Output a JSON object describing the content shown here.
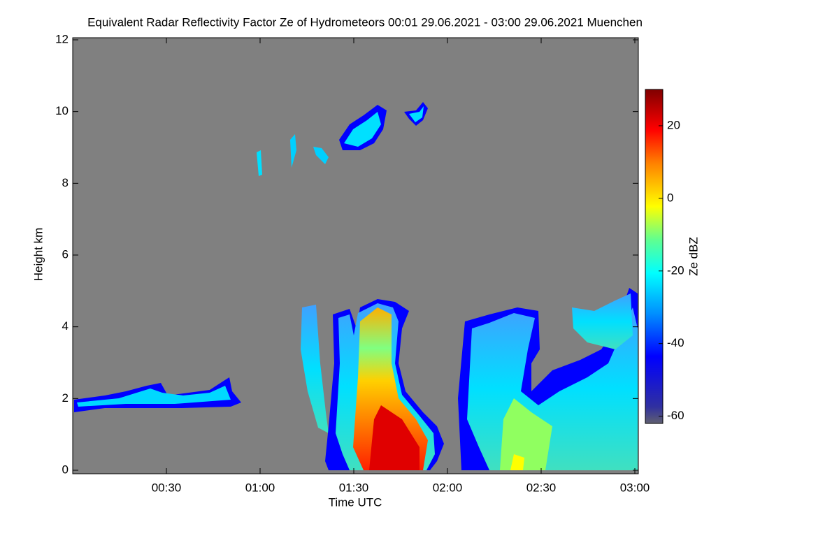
{
  "chart_data": {
    "type": "heatmap",
    "title": "Equivalent Radar Reflectivity Factor Ze of Hydrometeors   00:01 29.06.2021 - 03:00 29.06.2021 Muenchen",
    "x_label": "Time UTC",
    "y_label": "Height km",
    "colorbar_label": "Ze dBZ",
    "xlim": [
      0,
      180
    ],
    "xticks": [
      {
        "value": 30,
        "label": "00:30"
      },
      {
        "value": 60,
        "label": "01:00"
      },
      {
        "value": 90,
        "label": "01:30"
      },
      {
        "value": 120,
        "label": "02:00"
      },
      {
        "value": 150,
        "label": "02:30"
      },
      {
        "value": 180,
        "label": "03:00"
      }
    ],
    "ylim": [
      0,
      12
    ],
    "yticks": [
      0,
      2,
      4,
      6,
      8,
      10,
      12
    ],
    "clim": [
      -62,
      30
    ],
    "cticks": [
      -60,
      -40,
      -20,
      0,
      20
    ],
    "background": "#808080"
  }
}
